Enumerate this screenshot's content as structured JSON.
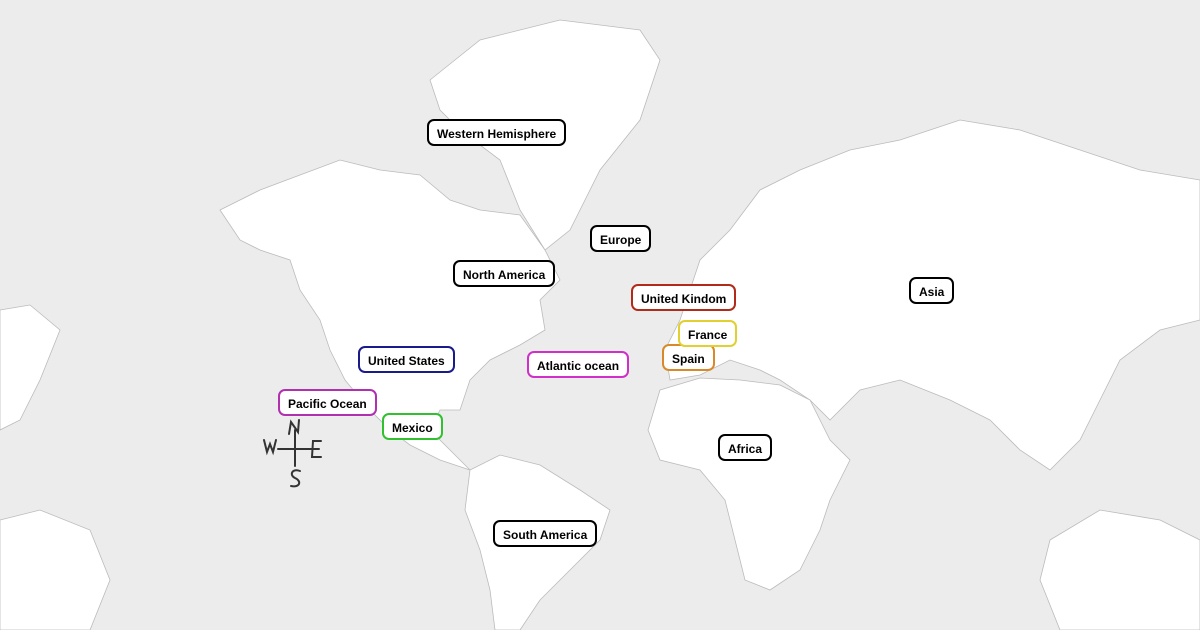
{
  "map": {
    "background_color": "#ececec",
    "land_color": "#ffffff",
    "labels": [
      {
        "text": "Western Hemisphere",
        "border_color": "#000000"
      },
      {
        "text": "Europe",
        "border_color": "#000000"
      },
      {
        "text": "North America",
        "border_color": "#000000"
      },
      {
        "text": "United Kindom",
        "border_color": "#b22a1a"
      },
      {
        "text": "Asia",
        "border_color": "#000000"
      },
      {
        "text": "France",
        "border_color": "#e0d030"
      },
      {
        "text": "Spain",
        "border_color": "#d88a2a"
      },
      {
        "text": "United States",
        "border_color": "#1a1a8a"
      },
      {
        "text": "Atlantic ocean",
        "border_color": "#d030c8"
      },
      {
        "text": "Pacific Ocean",
        "border_color": "#b030b0"
      },
      {
        "text": "Mexico",
        "border_color": "#30c030"
      },
      {
        "text": "Africa",
        "border_color": "#000000"
      },
      {
        "text": "South America",
        "border_color": "#000000"
      }
    ],
    "compass": {
      "n": "N",
      "e": "E",
      "s": "S",
      "w": "W",
      "icon": "compass-rose-icon"
    }
  }
}
